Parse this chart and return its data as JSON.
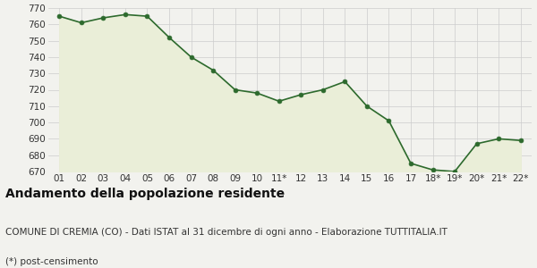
{
  "x_labels": [
    "01",
    "02",
    "03",
    "04",
    "05",
    "06",
    "07",
    "08",
    "09",
    "10",
    "11*",
    "12",
    "13",
    "14",
    "15",
    "16",
    "17",
    "18*",
    "19*",
    "20*",
    "21*",
    "22*"
  ],
  "y_values": [
    765,
    761,
    764,
    766,
    765,
    752,
    740,
    732,
    720,
    718,
    713,
    717,
    720,
    725,
    710,
    701,
    675,
    671,
    670,
    687,
    690,
    689
  ],
  "ylim": [
    670,
    770
  ],
  "yticks": [
    670,
    680,
    690,
    700,
    710,
    720,
    730,
    740,
    750,
    760,
    770
  ],
  "line_color": "#2d6a2d",
  "fill_color": "#eaeed8",
  "marker_color": "#2d6a2d",
  "bg_color": "#f2f2ee",
  "grid_color": "#cccccc",
  "title": "Andamento della popolazione residente",
  "subtitle": "COMUNE DI CREMIA (CO) - Dati ISTAT al 31 dicembre di ogni anno - Elaborazione TUTTITALIA.IT",
  "footnote": "(*) post-censimento",
  "title_fontsize": 10,
  "subtitle_fontsize": 7.5,
  "footnote_fontsize": 7.5,
  "tick_fontsize": 7.5
}
